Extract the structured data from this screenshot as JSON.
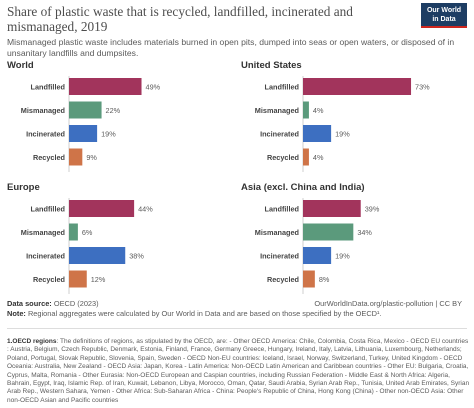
{
  "title": "Share of plastic waste that is recycled, landfilled, incinerated and mismanaged, 2019",
  "subtitle": "Mismanaged plastic waste includes materials burned in open pits, dumped into seas or open waters, or disposed of in unsanitary landfills and dumpsites.",
  "logo": {
    "line1": "Our World",
    "line2": "in Data"
  },
  "colors": {
    "Landfilled": "#a2345c",
    "Mismanaged": "#5b9a7c",
    "Incinerated": "#3d6fc1",
    "Recycled": "#cf7448"
  },
  "chart_data": [
    {
      "type": "bar",
      "title": "World",
      "categories": [
        "Landfilled",
        "Mismanaged",
        "Incinerated",
        "Recycled"
      ],
      "values": [
        49,
        22,
        19,
        9
      ],
      "unit": "%"
    },
    {
      "type": "bar",
      "title": "United States",
      "categories": [
        "Landfilled",
        "Mismanaged",
        "Incinerated",
        "Recycled"
      ],
      "values": [
        73,
        4,
        19,
        4
      ],
      "unit": "%"
    },
    {
      "type": "bar",
      "title": "Europe",
      "categories": [
        "Landfilled",
        "Mismanaged",
        "Incinerated",
        "Recycled"
      ],
      "values": [
        44,
        6,
        38,
        12
      ],
      "unit": "%"
    },
    {
      "type": "bar",
      "title": "Asia (excl. China and India)",
      "categories": [
        "Landfilled",
        "Mismanaged",
        "Incinerated",
        "Recycled"
      ],
      "values": [
        39,
        34,
        19,
        8
      ],
      "unit": "%"
    }
  ],
  "footer": {
    "source_label": "Data source:",
    "source_text": "OECD (2023)",
    "url_text": "OurWorldInData.org/plastic-pollution | CC BY",
    "note_label": "Note:",
    "note_text": "Regional aggregates were calculated by Our World in Data and are based on those specified by the OECD¹."
  },
  "notes": {
    "label": "1.OECD regions",
    "text": ": The definitions of regions, as stipulated by the OECD, are: - Other OECD America: Chile, Colombia, Costa Rica, Mexico - OECD EU countries : Austria, Belgium, Czech Republic, Denmark, Estonia, Finland, France, Germany Greece, Hungary, Ireland, Italy, Latvia, Lithuania, Luxembourg, Netherlands; Poland, Portugal, Slovak Republic, Slovenia, Spain, Sweden - OECD Non-EU countries: Iceland, Israel, Norway, Switzerland, Turkey, United Kingdom - OECD Oceania: Australia, New Zealand - OECD Asia: Japan, Korea - Latin America: Non-OECD Latin American and Caribbean countries - Other EU: Bulgaria, Croatia, Cyprus, Malta, Romania - Other Eurasia: Non-OECD European and Caspian countries, including Russian Federation - Middle East & North Africa: Algeria, Bahrain, Egypt, Iraq, Islamic Rep. of Iran, Kuwait, Lebanon, Libya, Morocco, Oman, Qatar, Saudi Arabia, Syrian Arab Rep., Tunisia, United Arab Emirates, Syrian Arab Rep., Western Sahara, Yemen - Other Africa: Sub-Saharan Africa - China: People's Republic of China, Hong Kong (China) - Other non-OECD Asia: Other non-OECD Asian and Pacific countries"
  }
}
